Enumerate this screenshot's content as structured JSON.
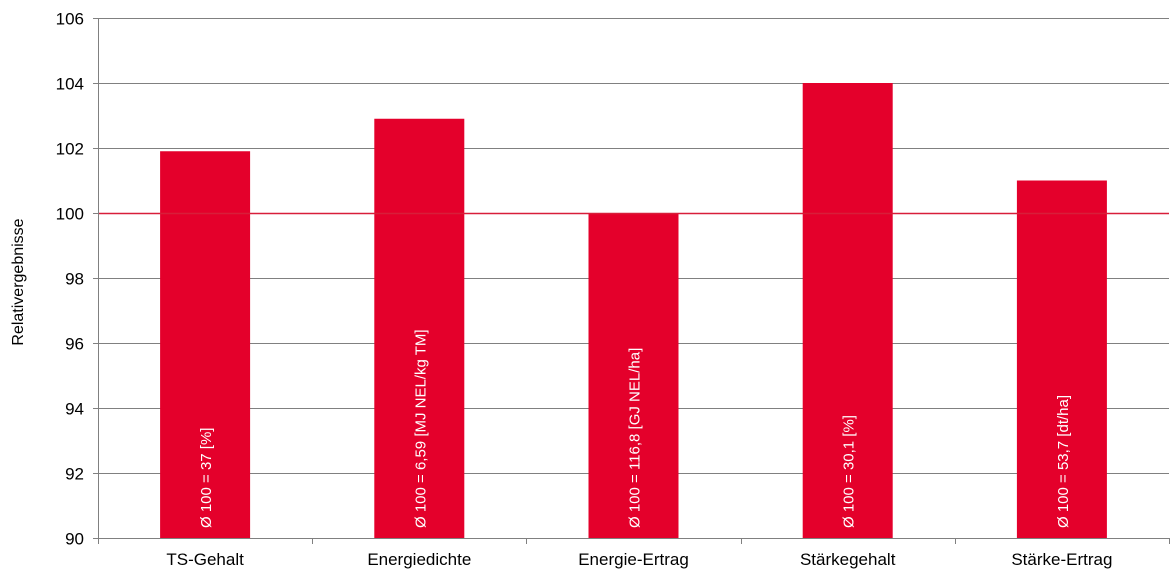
{
  "chart_data": {
    "type": "bar",
    "title": "",
    "xlabel": "",
    "ylabel": "Relativergebnisse",
    "ylim": [
      90,
      106
    ],
    "yticks": [
      90,
      92,
      94,
      96,
      98,
      100,
      102,
      104,
      106
    ],
    "grid": true,
    "reference_line": 100,
    "categories": [
      "TS-Gehalt",
      "Energiedichte",
      "Energie-Ertrag",
      "Stärkegehalt",
      "Stärke-Ertrag"
    ],
    "values": [
      101.9,
      102.9,
      100.0,
      104.0,
      101.0
    ],
    "bar_labels": [
      "Ø 100 = 37 [%]",
      "Ø 100 = 6,59 [MJ NEL/kg TM]",
      "Ø 100 = 116,8 [GJ NEL/ha]",
      "Ø 100 = 30,1 [%]",
      "Ø 100 = 53,7 [dt/ha]"
    ],
    "colors": {
      "bar": "#E4002B",
      "reference_line": "#D81E3A",
      "grid": "#808080",
      "axis": "#808080"
    }
  }
}
